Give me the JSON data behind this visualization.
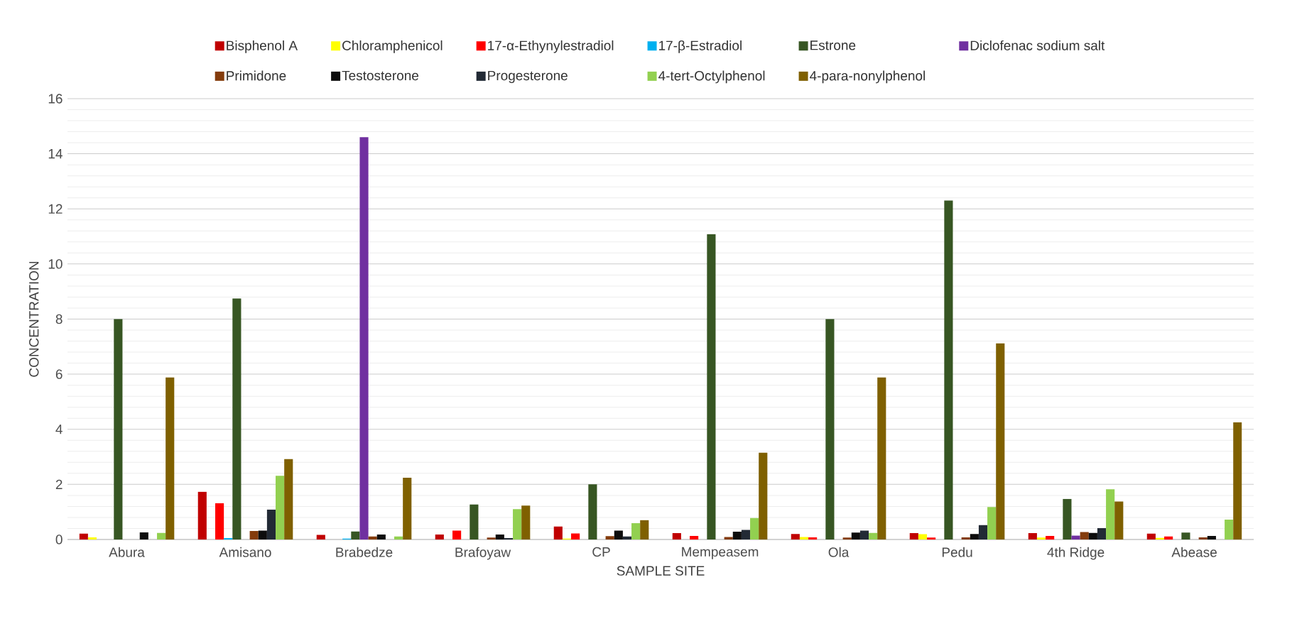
{
  "chart_data": {
    "type": "bar",
    "xlabel": "SAMPLE SITE",
    "ylabel": "CONCENTRATION",
    "categories": [
      "Abura",
      "Amisano",
      "Brabedze",
      "Brafoyaw",
      "CP",
      "Mempeasem",
      "Ola",
      "Pedu",
      "4th Ridge",
      "Abease"
    ],
    "series": [
      {
        "name": "Bisphenol A",
        "color": "#c00000",
        "values": [
          0.21,
          1.73,
          0.17,
          0.18,
          0.47,
          0.23,
          0.2,
          0.23,
          0.23,
          0.21
        ]
      },
      {
        "name": "Chloramphenicol",
        "color": "#ffff00",
        "values": [
          0.08,
          0,
          0,
          0,
          0.03,
          0,
          0.09,
          0.19,
          0.07,
          0.06
        ]
      },
      {
        "name": "17-α-Ethynylestradiol",
        "color": "#ff0000",
        "values": [
          0,
          1.32,
          0,
          0.32,
          0.22,
          0.13,
          0.08,
          0.07,
          0.13,
          0.11
        ]
      },
      {
        "name": "17-β-Estradiol",
        "color": "#00b0f0",
        "values": [
          0,
          0.05,
          0.03,
          0,
          0,
          0,
          0,
          0,
          0,
          0
        ]
      },
      {
        "name": "Estrone",
        "color": "#375623",
        "values": [
          8.0,
          8.75,
          0.29,
          1.27,
          2.0,
          11.08,
          8.0,
          12.3,
          1.47,
          0.25
        ]
      },
      {
        "name": "Diclofenac sodium salt",
        "color": "#7030a0",
        "values": [
          0,
          0,
          14.6,
          0,
          0,
          0,
          0,
          0,
          0.14,
          0
        ]
      },
      {
        "name": "Primidone",
        "color": "#843c0c",
        "values": [
          0,
          0.31,
          0.11,
          0.07,
          0.12,
          0.09,
          0.07,
          0.08,
          0.27,
          0.08
        ]
      },
      {
        "name": "Testosterone",
        "color": "#0d0d0d",
        "values": [
          0.26,
          0.32,
          0.18,
          0.18,
          0.32,
          0.28,
          0.25,
          0.2,
          0.24,
          0.13
        ]
      },
      {
        "name": "Progesterone",
        "color": "#222a35",
        "values": [
          0,
          1.09,
          0,
          0.05,
          0.11,
          0.35,
          0.32,
          0.52,
          0.41,
          0
        ]
      },
      {
        "name": "4-tert-Octylphenol",
        "color": "#92d050",
        "values": [
          0.24,
          2.31,
          0.11,
          1.1,
          0.59,
          0.78,
          0.24,
          1.18,
          1.82,
          0.72
        ]
      },
      {
        "name": "4-para-nonylphenol",
        "color": "#7f6000",
        "values": [
          5.88,
          2.92,
          2.24,
          1.23,
          0.7,
          3.15,
          5.88,
          7.12,
          1.38,
          4.25
        ]
      }
    ],
    "ylim": [
      0,
      16
    ],
    "yticks": [
      0,
      2,
      4,
      6,
      8,
      10,
      12,
      14,
      16
    ],
    "grid": "y",
    "legend": "top"
  }
}
